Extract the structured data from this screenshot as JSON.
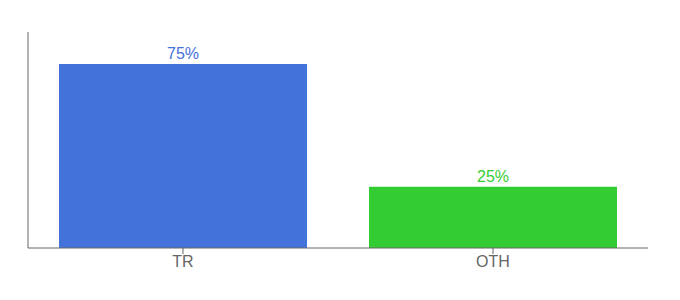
{
  "chart_data": {
    "type": "bar",
    "categories": [
      "TR",
      "OTH"
    ],
    "values": [
      75,
      25
    ],
    "colors": [
      "#4472db",
      "#33cc33"
    ],
    "value_labels": [
      "75%",
      "25%"
    ],
    "data_labels": true,
    "ylim": [
      0,
      88
    ],
    "tick_labels": "x",
    "grid": false
  }
}
